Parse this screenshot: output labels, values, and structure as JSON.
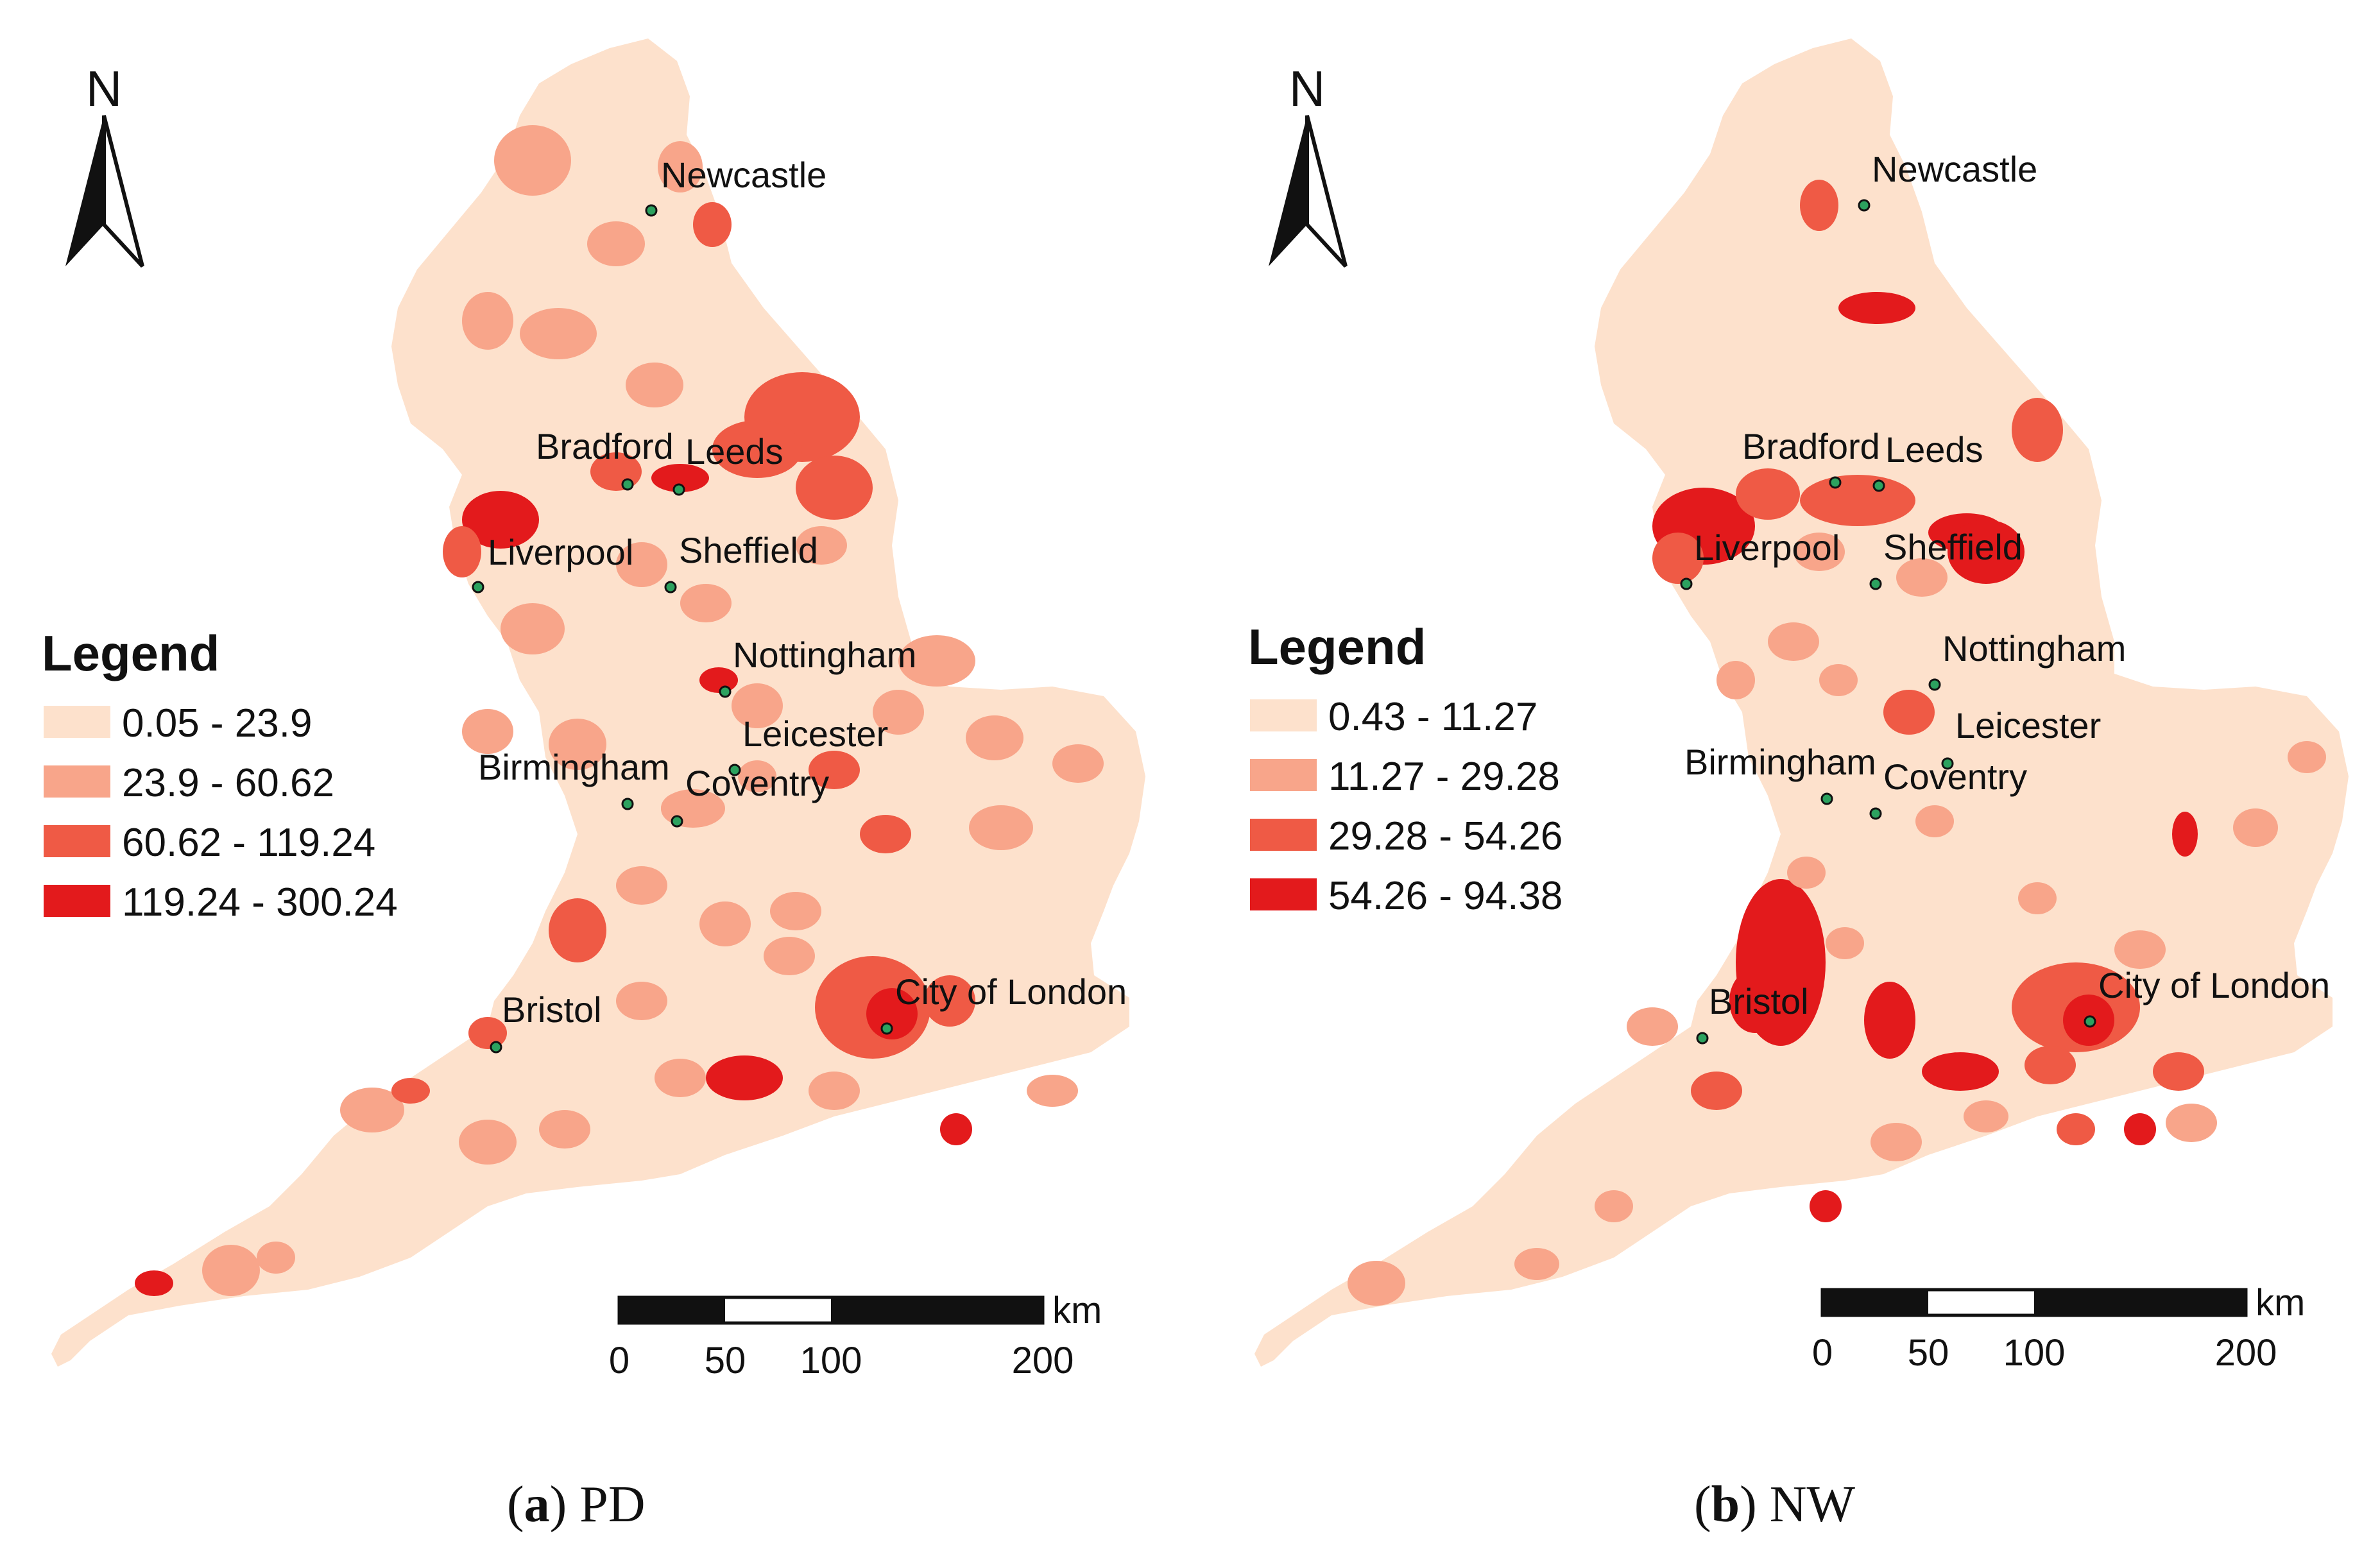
{
  "colors": {
    "class1": "#fde1cc",
    "class2": "#f8a58a",
    "class3": "#ef5a45",
    "class4": "#e31a1c",
    "boundary": "#ffffff",
    "city_dot": "#2ca25f"
  },
  "north_label": "N",
  "scale_bar": {
    "unit": "km",
    "ticks": [
      "0",
      "50",
      "100",
      "200"
    ]
  },
  "panels": [
    {
      "caption_letter": "a",
      "caption_text": " PD",
      "legend": {
        "title": "Legend",
        "classes": [
          "0.05 - 23.9",
          "23.9 - 60.62",
          "60.62 - 119.24",
          "119.24 - 300.24"
        ]
      },
      "cities": [
        "Newcastle",
        "Bradford",
        "Leeds",
        "Liverpool",
        "Sheffield",
        "Nottingham",
        "Leicester",
        "Birmingham",
        "Coventry",
        "Bristol",
        "City of London"
      ]
    },
    {
      "caption_letter": "b",
      "caption_text": " NW",
      "legend": {
        "title": "Legend",
        "classes": [
          "0.43 - 11.27",
          "11.27 - 29.28",
          "29.28 - 54.26",
          "54.26 - 94.38"
        ]
      },
      "cities": [
        "Newcastle",
        "Bradford",
        "Leeds",
        "Liverpool",
        "Sheffield",
        "Nottingham",
        "Leicester",
        "Birmingham",
        "Coventry",
        "Bristol",
        "City of London"
      ]
    }
  ]
}
